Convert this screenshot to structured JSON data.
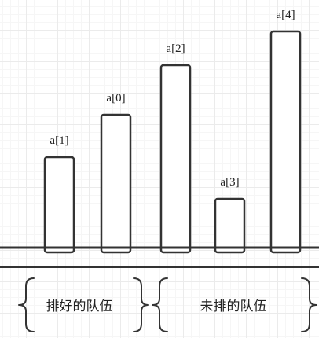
{
  "bars": [
    {
      "label": "a[1]",
      "value": 115
    },
    {
      "label": "a[0]",
      "value": 169
    },
    {
      "label": "a[2]",
      "value": 232
    },
    {
      "label": "a[3]",
      "value": 62
    },
    {
      "label": "a[4]",
      "value": 275
    }
  ],
  "groups": {
    "sorted": "排好的队伍",
    "unsorted": "未排的队伍"
  }
}
